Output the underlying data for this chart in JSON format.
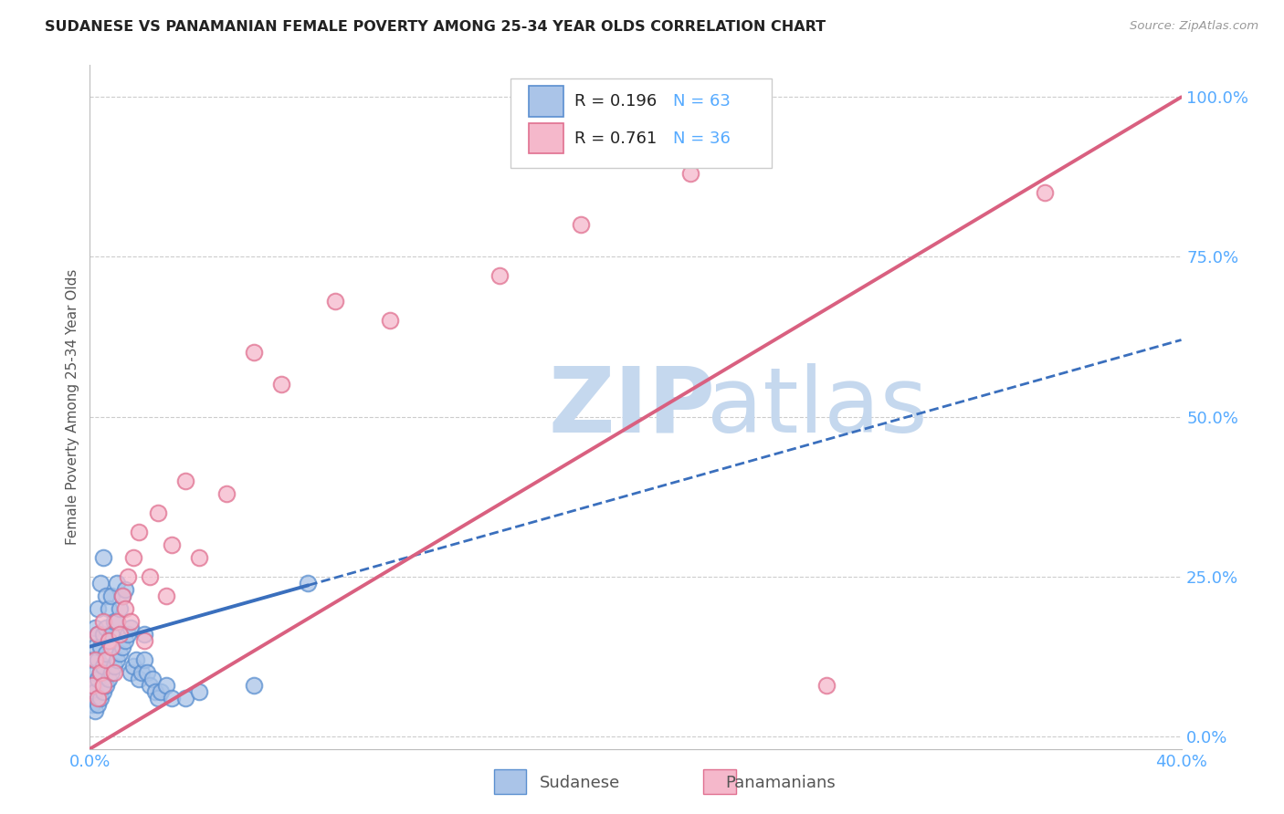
{
  "title": "SUDANESE VS PANAMANIAN FEMALE POVERTY AMONG 25-34 YEAR OLDS CORRELATION CHART",
  "source": "Source: ZipAtlas.com",
  "ylabel": "Female Poverty Among 25-34 Year Olds",
  "xlim": [
    0.0,
    0.4
  ],
  "ylim": [
    -0.02,
    1.05
  ],
  "yticks": [
    0.0,
    0.25,
    0.5,
    0.75,
    1.0
  ],
  "ytick_labels": [
    "0.0%",
    "25.0%",
    "50.0%",
    "75.0%",
    "100.0%"
  ],
  "xticks": [
    0.0,
    0.05,
    0.1,
    0.15,
    0.2,
    0.25,
    0.3,
    0.35,
    0.4
  ],
  "xtick_labels": [
    "0.0%",
    "",
    "",
    "",
    "",
    "",
    "",
    "",
    "40.0%"
  ],
  "color_sudanese_fill": "#aac4e8",
  "color_sudanese_edge": "#5a8fd0",
  "color_panamanians_fill": "#f5b8cb",
  "color_panamanians_edge": "#e07090",
  "color_sudanese_line": "#3a6fbd",
  "color_panamanians_line": "#d96080",
  "color_axis_labels": "#55aaff",
  "color_grid": "#cccccc",
  "watermark_zip_color": "#c5d8ee",
  "watermark_atlas_color": "#c5d8ee",
  "sudanese_x": [
    0.001,
    0.001,
    0.001,
    0.002,
    0.002,
    0.002,
    0.002,
    0.002,
    0.003,
    0.003,
    0.003,
    0.003,
    0.003,
    0.004,
    0.004,
    0.004,
    0.004,
    0.005,
    0.005,
    0.005,
    0.005,
    0.006,
    0.006,
    0.006,
    0.006,
    0.007,
    0.007,
    0.007,
    0.008,
    0.008,
    0.008,
    0.009,
    0.009,
    0.01,
    0.01,
    0.01,
    0.011,
    0.011,
    0.012,
    0.012,
    0.013,
    0.013,
    0.014,
    0.015,
    0.015,
    0.016,
    0.017,
    0.018,
    0.019,
    0.02,
    0.02,
    0.021,
    0.022,
    0.023,
    0.024,
    0.025,
    0.026,
    0.028,
    0.03,
    0.035,
    0.04,
    0.06,
    0.08
  ],
  "sudanese_y": [
    0.05,
    0.08,
    0.12,
    0.04,
    0.07,
    0.1,
    0.14,
    0.17,
    0.05,
    0.09,
    0.12,
    0.16,
    0.2,
    0.06,
    0.1,
    0.14,
    0.24,
    0.07,
    0.11,
    0.16,
    0.28,
    0.08,
    0.13,
    0.17,
    0.22,
    0.09,
    0.15,
    0.2,
    0.1,
    0.16,
    0.22,
    0.11,
    0.18,
    0.12,
    0.18,
    0.24,
    0.13,
    0.2,
    0.14,
    0.22,
    0.15,
    0.23,
    0.16,
    0.1,
    0.17,
    0.11,
    0.12,
    0.09,
    0.1,
    0.12,
    0.16,
    0.1,
    0.08,
    0.09,
    0.07,
    0.06,
    0.07,
    0.08,
    0.06,
    0.06,
    0.07,
    0.08,
    0.24
  ],
  "panamanians_x": [
    0.001,
    0.002,
    0.003,
    0.003,
    0.004,
    0.005,
    0.005,
    0.006,
    0.007,
    0.008,
    0.009,
    0.01,
    0.011,
    0.012,
    0.013,
    0.014,
    0.015,
    0.016,
    0.018,
    0.02,
    0.022,
    0.025,
    0.028,
    0.03,
    0.035,
    0.04,
    0.05,
    0.06,
    0.07,
    0.09,
    0.11,
    0.15,
    0.18,
    0.22,
    0.27,
    0.35
  ],
  "panamanians_y": [
    0.08,
    0.12,
    0.06,
    0.16,
    0.1,
    0.08,
    0.18,
    0.12,
    0.15,
    0.14,
    0.1,
    0.18,
    0.16,
    0.22,
    0.2,
    0.25,
    0.18,
    0.28,
    0.32,
    0.15,
    0.25,
    0.35,
    0.22,
    0.3,
    0.4,
    0.28,
    0.38,
    0.6,
    0.55,
    0.68,
    0.65,
    0.72,
    0.8,
    0.88,
    0.08,
    0.85
  ],
  "sudanese_line_solid_end": 0.08,
  "sudanese_line_intercept": 0.14,
  "sudanese_line_slope": 1.2,
  "panamanians_line_intercept": -0.02,
  "panamanians_line_slope": 2.55
}
